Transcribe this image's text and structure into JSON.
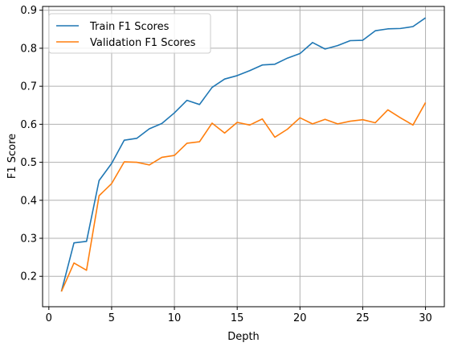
{
  "chart_data": {
    "type": "line",
    "title": "",
    "xlabel": "Depth",
    "ylabel": "F1 Score",
    "xlim": [
      -0.5,
      31.5
    ],
    "ylim": [
      0.12,
      0.91
    ],
    "xticks": [
      0,
      5,
      10,
      15,
      20,
      25,
      30
    ],
    "yticks": [
      0.2,
      0.3,
      0.4,
      0.5,
      0.6,
      0.7,
      0.8,
      0.9
    ],
    "grid": true,
    "legend_position": "top-left",
    "x": [
      1,
      2,
      3,
      4,
      5,
      6,
      7,
      8,
      9,
      10,
      11,
      12,
      13,
      14,
      15,
      16,
      17,
      18,
      19,
      20,
      21,
      22,
      23,
      24,
      25,
      26,
      27,
      28,
      29,
      30
    ],
    "series": [
      {
        "name": "Train F1 Scores",
        "color": "#1f77b4",
        "values": [
          0.16,
          0.288,
          0.292,
          0.452,
          0.497,
          0.558,
          0.563,
          0.588,
          0.602,
          0.63,
          0.663,
          0.652,
          0.697,
          0.719,
          0.728,
          0.741,
          0.756,
          0.758,
          0.774,
          0.786,
          0.815,
          0.798,
          0.807,
          0.82,
          0.821,
          0.846,
          0.851,
          0.852,
          0.857,
          0.88
        ]
      },
      {
        "name": "Validation F1 Scores",
        "color": "#ff7f0e",
        "values": [
          0.16,
          0.235,
          0.216,
          0.412,
          0.444,
          0.501,
          0.5,
          0.493,
          0.513,
          0.518,
          0.55,
          0.554,
          0.603,
          0.577,
          0.605,
          0.598,
          0.614,
          0.566,
          0.587,
          0.617,
          0.601,
          0.613,
          0.601,
          0.608,
          0.612,
          0.604,
          0.638,
          0.617,
          0.598,
          0.657
        ]
      }
    ]
  }
}
